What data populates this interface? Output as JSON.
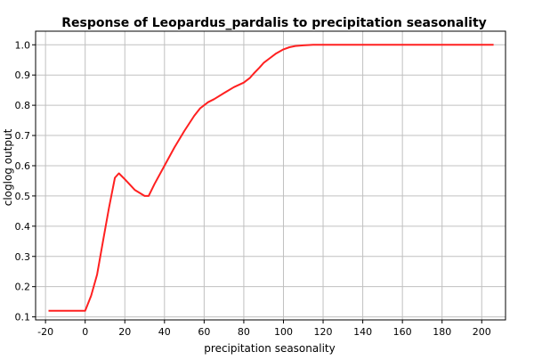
{
  "chart_data": {
    "type": "line",
    "title": "Response of Leopardus_pardalis to precipitation seasonality",
    "xlabel": "precipitation seasonality",
    "ylabel": "cloglog output",
    "xlim": [
      -25,
      212
    ],
    "ylim": [
      0.09,
      1.045
    ],
    "x_ticks": [
      -20,
      0,
      20,
      40,
      60,
      80,
      100,
      120,
      140,
      160,
      180,
      200
    ],
    "y_ticks": [
      0.1,
      0.2,
      0.3,
      0.4,
      0.5,
      0.6,
      0.7,
      0.8,
      0.9,
      1.0
    ],
    "x_tick_labels": [
      "-20",
      "0",
      "20",
      "40",
      "60",
      "80",
      "100",
      "120",
      "140",
      "160",
      "180",
      "200"
    ],
    "y_tick_labels": [
      "0.1",
      "0.2",
      "0.3",
      "0.4",
      "0.5",
      "0.6",
      "0.7",
      "0.8",
      "0.9",
      "1.0"
    ],
    "grid": true,
    "legend": "none",
    "series": [
      {
        "color": "#ff2020",
        "x": [
          -18.5,
          0,
          3,
          6,
          9,
          12,
          15,
          17,
          20,
          25,
          30,
          32,
          35,
          40,
          45,
          50,
          55,
          58,
          60,
          62,
          65,
          70,
          75,
          80,
          83,
          85,
          88,
          90,
          93,
          96,
          100,
          103,
          106,
          110,
          115,
          120,
          140,
          160,
          180,
          200,
          206
        ],
        "y": [
          0.12,
          0.12,
          0.17,
          0.24,
          0.35,
          0.46,
          0.56,
          0.575,
          0.555,
          0.52,
          0.5,
          0.5,
          0.54,
          0.6,
          0.66,
          0.715,
          0.765,
          0.79,
          0.8,
          0.81,
          0.82,
          0.84,
          0.86,
          0.875,
          0.89,
          0.905,
          0.925,
          0.94,
          0.955,
          0.97,
          0.985,
          0.992,
          0.996,
          0.998,
          1.0,
          1.0,
          1.0,
          1.0,
          1.0,
          1.0,
          1.0
        ]
      }
    ]
  }
}
